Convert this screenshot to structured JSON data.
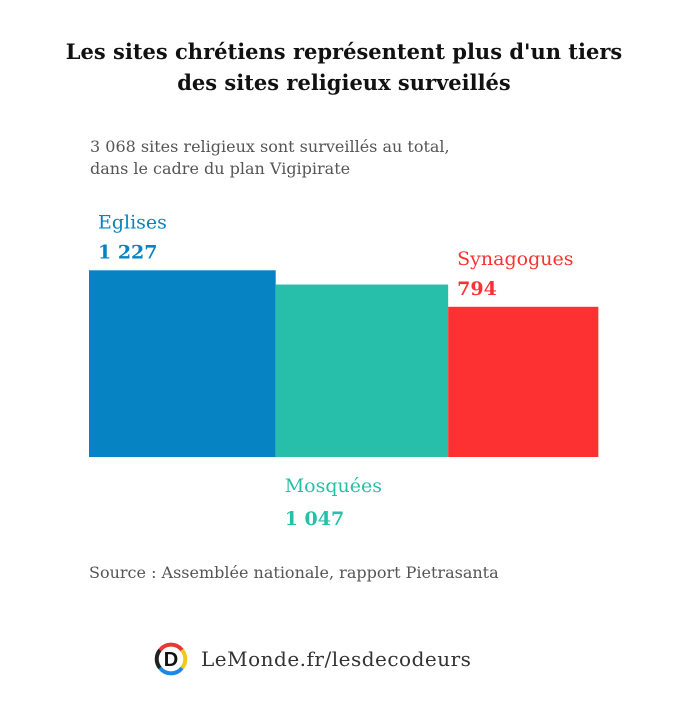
{
  "title_line1": "Les sites chrétiens représentent plus d'un tiers",
  "title_line2": "des sites religieux surveillés",
  "subtitle_line1": "3 068 sites religieux sont surveillés au total,",
  "subtitle_line2": "dans le cadre du plan Vigipirate",
  "chart_data": {
    "type": "bar",
    "title": "Les sites chrétiens représentent plus d'un tiers des sites religieux surveillés",
    "total": 3068,
    "categories": [
      "Eglises",
      "Mosquées",
      "Synagogues"
    ],
    "values": [
      1227,
      1047,
      794
    ],
    "value_labels": [
      "1 227",
      "1 047",
      "794"
    ],
    "colors": [
      "#0583c2",
      "#28bfaa",
      "#fd3131"
    ],
    "label_placement": [
      "above",
      "below",
      "above"
    ]
  },
  "source": "Source : Assemblée nationale, rapport Pietrasanta",
  "footer": {
    "text": "LeMonde.fr/lesdecodeurs",
    "logo_letter": "D"
  }
}
